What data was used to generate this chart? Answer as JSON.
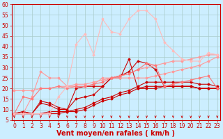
{
  "x": [
    0,
    1,
    2,
    3,
    4,
    5,
    6,
    7,
    8,
    9,
    10,
    11,
    12,
    13,
    14,
    15,
    16,
    17,
    18,
    19,
    20,
    21,
    22,
    23
  ],
  "lines": [
    {
      "y": [
        8,
        8,
        8,
        8,
        8,
        8,
        9,
        9,
        10,
        12,
        14,
        15,
        17,
        18,
        20,
        21,
        21,
        21,
        21,
        21,
        21,
        20,
        20,
        20
      ],
      "color": "#cc0000",
      "lw": 0.8,
      "marker": "D",
      "ms": 1.5
    },
    {
      "y": [
        8,
        9,
        8,
        14,
        13,
        11,
        10,
        20,
        21,
        21,
        21,
        25,
        25,
        34,
        20,
        20,
        20,
        21,
        21,
        21,
        21,
        20,
        20,
        20
      ],
      "color": "#cc0000",
      "lw": 0.8,
      "marker": "D",
      "ms": 1.5
    },
    {
      "y": [
        8,
        9,
        8,
        13,
        12,
        10,
        10,
        15,
        16,
        17,
        21,
        25,
        26,
        28,
        33,
        32,
        29,
        21,
        21,
        21,
        21,
        20,
        20,
        20
      ],
      "color": "#cc0000",
      "lw": 0.8,
      "marker": "D",
      "ms": 1.5
    },
    {
      "y": [
        8,
        8,
        8,
        8,
        9,
        9,
        9,
        10,
        11,
        13,
        15,
        16,
        18,
        19,
        21,
        23,
        23,
        23,
        23,
        23,
        23,
        22,
        22,
        21
      ],
      "color": "#cc0000",
      "lw": 0.8,
      "marker": "D",
      "ms": 1.5
    },
    {
      "y": [
        8,
        8,
        16,
        28,
        25,
        25,
        21,
        21,
        21,
        22,
        25,
        25,
        25,
        25,
        25,
        25,
        26,
        27,
        28,
        29,
        30,
        31,
        33,
        35
      ],
      "color": "#ff9999",
      "lw": 0.8,
      "marker": "D",
      "ms": 1.5
    },
    {
      "y": [
        19,
        19,
        19,
        20,
        20,
        21,
        21,
        22,
        22,
        23,
        24,
        25,
        26,
        27,
        29,
        30,
        31,
        32,
        33,
        33,
        34,
        35,
        36,
        36
      ],
      "color": "#ff9999",
      "lw": 0.8,
      "marker": "D",
      "ms": 1.5
    },
    {
      "y": [
        8,
        16,
        15,
        20,
        20,
        21,
        20,
        21,
        21,
        22,
        23,
        25,
        26,
        27,
        29,
        32,
        31,
        21,
        22,
        23,
        24,
        25,
        26,
        20
      ],
      "color": "#ff7777",
      "lw": 0.8,
      "marker": "D",
      "ms": 1.5
    },
    {
      "y": [
        8,
        8,
        8,
        8,
        8,
        16,
        21,
        41,
        46,
        36,
        53,
        47,
        46,
        53,
        57,
        57,
        53,
        42,
        38,
        34,
        33,
        33,
        37,
        36
      ],
      "color": "#ffbbbb",
      "lw": 0.8,
      "marker": "D",
      "ms": 1.5
    }
  ],
  "xlabel": "Vent moyen/en rafales ( km/h )",
  "xlim": [
    -0.3,
    23.3
  ],
  "ylim": [
    5,
    60
  ],
  "yticks": [
    5,
    10,
    15,
    20,
    25,
    30,
    35,
    40,
    45,
    50,
    55,
    60
  ],
  "xticks": [
    0,
    1,
    2,
    3,
    4,
    5,
    6,
    7,
    8,
    9,
    10,
    11,
    12,
    13,
    14,
    15,
    16,
    17,
    18,
    19,
    20,
    21,
    22,
    23
  ],
  "bg_color": "#cceeff",
  "grid_color": "#aacccc",
  "text_color": "#cc0000",
  "tick_fontsize": 5.5,
  "xlabel_fontsize": 7.0
}
